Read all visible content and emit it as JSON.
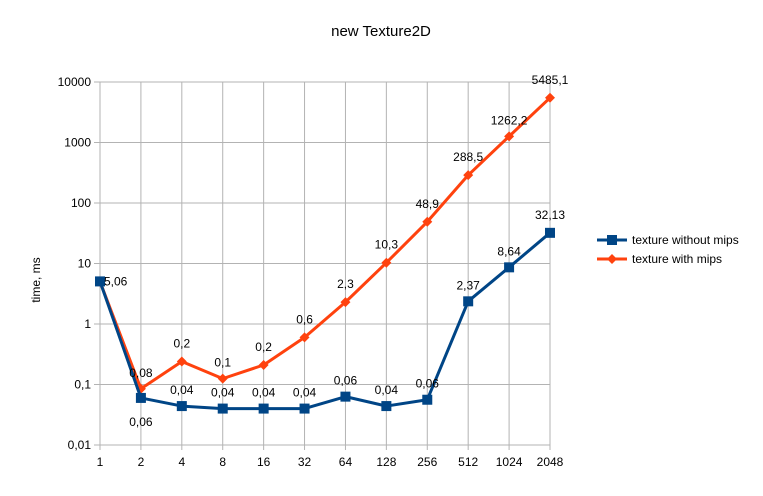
{
  "chart_data": {
    "type": "line",
    "title": "new Texture2D",
    "xlabel": "",
    "ylabel": "time, ms",
    "y_scale": "log",
    "ylim": [
      0.01,
      10000
    ],
    "y_ticks": [
      "0,01",
      "0,1",
      "1",
      "10",
      "100",
      "1000",
      "10000"
    ],
    "categories": [
      "1",
      "2",
      "4",
      "8",
      "16",
      "32",
      "64",
      "128",
      "256",
      "512",
      "1024",
      "2048"
    ],
    "grid": "horizontal and vertical",
    "legend_position": "right",
    "series": [
      {
        "name": "texture without mips",
        "color": "#004586",
        "marker": "square",
        "values": [
          5.06,
          0.06,
          0.044,
          0.04,
          0.04,
          0.04,
          0.063,
          0.044,
          0.056,
          2.37,
          8.64,
          32.13
        ],
        "labels": [
          "5,06",
          "0,06",
          "0,04",
          "0,04",
          "0,04",
          "0,04",
          "0,06",
          "0,04",
          "0,06",
          "2,37",
          "8,64",
          "32,13"
        ]
      },
      {
        "name": "texture with mips",
        "color": "#ff420e",
        "marker": "diamond",
        "values": [
          5.0,
          0.085,
          0.24,
          0.125,
          0.21,
          0.6,
          2.3,
          10.3,
          48.9,
          288.5,
          1262.2,
          5485.1
        ],
        "labels": [
          "5",
          "0,08",
          "0,2",
          "0,1",
          "0,2",
          "0,6",
          "2,3",
          "10,3",
          "48,9",
          "288,5",
          "1262,2",
          "5485,1"
        ]
      }
    ]
  }
}
